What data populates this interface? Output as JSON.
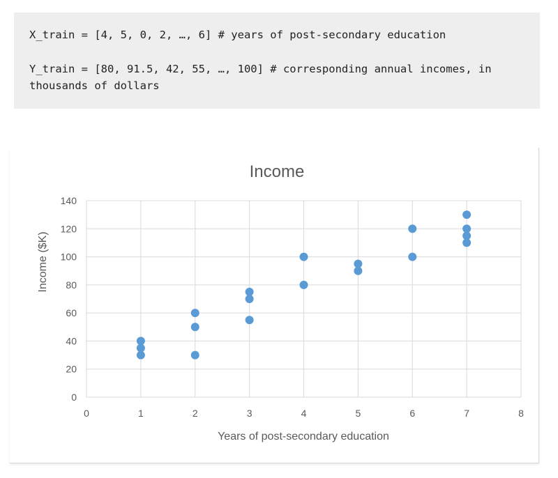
{
  "code": {
    "line1": "X_train = [4, 5, 0, 2, …, 6] # years of post-secondary education",
    "line2": "Y_train = [80, 91.5, 42, 55, …, 100] # corresponding annual incomes, in thousands of dollars"
  },
  "colors": {
    "marker": "#5b9bd5",
    "grid": "#d9d9d9",
    "text": "#595959",
    "code_bg": "#eeeeee"
  },
  "chart_data": {
    "type": "scatter",
    "title": "Income",
    "xlabel": "Years of post-secondary education",
    "ylabel": "Income ($K)",
    "xlim": [
      0,
      8
    ],
    "ylim": [
      0,
      140
    ],
    "xticks": [
      0,
      1,
      2,
      3,
      4,
      5,
      6,
      7,
      8
    ],
    "yticks": [
      0,
      20,
      40,
      60,
      80,
      100,
      120,
      140
    ],
    "grid": true,
    "legend": "none",
    "points": [
      {
        "x": 1,
        "y": 40
      },
      {
        "x": 1,
        "y": 35
      },
      {
        "x": 1,
        "y": 30
      },
      {
        "x": 2,
        "y": 60
      },
      {
        "x": 2,
        "y": 50
      },
      {
        "x": 2,
        "y": 30
      },
      {
        "x": 3,
        "y": 75
      },
      {
        "x": 3,
        "y": 70
      },
      {
        "x": 3,
        "y": 55
      },
      {
        "x": 4,
        "y": 100
      },
      {
        "x": 4,
        "y": 80
      },
      {
        "x": 5,
        "y": 95
      },
      {
        "x": 5,
        "y": 90
      },
      {
        "x": 6,
        "y": 120
      },
      {
        "x": 6,
        "y": 100
      },
      {
        "x": 7,
        "y": 130
      },
      {
        "x": 7,
        "y": 120
      },
      {
        "x": 7,
        "y": 115
      },
      {
        "x": 7,
        "y": 110
      }
    ]
  }
}
